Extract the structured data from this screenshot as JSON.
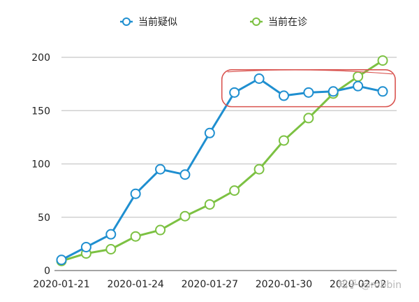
{
  "chart_data": {
    "type": "line",
    "title": "",
    "xlabel": "",
    "ylabel": "",
    "x": [
      "2020-01-21",
      "2020-01-22",
      "2020-01-23",
      "2020-01-24",
      "2020-01-25",
      "2020-01-26",
      "2020-01-27",
      "2020-01-28",
      "2020-01-29",
      "2020-01-30",
      "2020-01-31",
      "2020-02-01",
      "2020-02-02",
      "2020-02-03"
    ],
    "x_tick_labels": [
      "2020-01-21",
      "2020-01-24",
      "2020-01-27",
      "2020-01-30",
      "2020-02-02"
    ],
    "y_ticks": [
      0,
      50,
      100,
      150,
      200
    ],
    "ylim": [
      0,
      200
    ],
    "grid": "horizontal",
    "legend_position": "top",
    "series": [
      {
        "name": "当前疑似",
        "color": "#1f8fd0",
        "values": [
          10,
          22,
          34,
          72,
          95,
          90,
          129,
          167,
          180,
          164,
          167,
          168,
          173,
          168
        ]
      },
      {
        "name": "当前在诊",
        "color": "#7cc142",
        "values": [
          9,
          16,
          20,
          32,
          38,
          51,
          62,
          75,
          95,
          122,
          143,
          166,
          182,
          197
        ]
      }
    ],
    "annotation": {
      "type": "hand-drawn ellipse",
      "color": "#d9534f",
      "x_from": "2020-01-28",
      "x_to": "2020-02-03",
      "y_from": 155,
      "y_to": 187
    }
  },
  "watermark": "知乎 @robbin"
}
